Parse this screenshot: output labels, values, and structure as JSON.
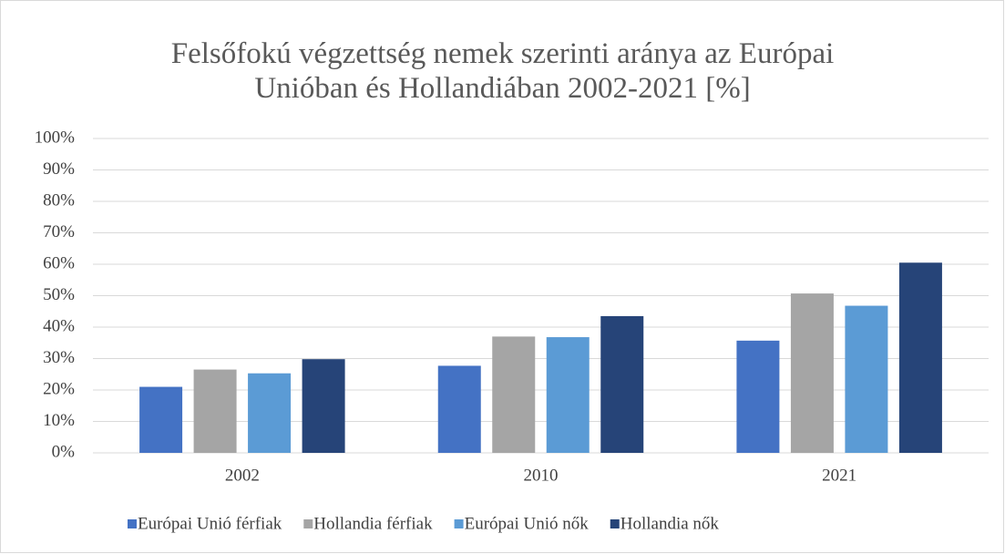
{
  "chart_data": {
    "type": "bar",
    "title": "Felsőfokú végzettség nemek szerinti aránya az Európai Unióban és Hollandiában 2002-2021 [%]",
    "categories": [
      "2002",
      "2010",
      "2021"
    ],
    "series": [
      {
        "name": "Európai Unió férfiak",
        "color": "#4472c4",
        "values": [
          21,
          27.7,
          35.7
        ]
      },
      {
        "name": "Hollandia férfiak",
        "color": "#a5a5a5",
        "values": [
          26.5,
          37,
          50.7
        ]
      },
      {
        "name": "Európai Unió nők",
        "color": "#5b9bd5",
        "values": [
          25.3,
          36.8,
          46.8
        ]
      },
      {
        "name": "Hollandia nők",
        "color": "#264478",
        "values": [
          29.8,
          43.5,
          60.5
        ]
      }
    ],
    "ylim": [
      0,
      100
    ],
    "yticks": [
      {
        "value": 0,
        "label": "0%"
      },
      {
        "value": 10,
        "label": "10%"
      },
      {
        "value": 20,
        "label": "20%"
      },
      {
        "value": 30,
        "label": "30%"
      },
      {
        "value": 40,
        "label": "40%"
      },
      {
        "value": 50,
        "label": "50%"
      },
      {
        "value": 60,
        "label": "60%"
      },
      {
        "value": 70,
        "label": "70%"
      },
      {
        "value": 80,
        "label": "80%"
      },
      {
        "value": 90,
        "label": "90%"
      },
      {
        "value": 100,
        "label": "100%"
      }
    ],
    "grid": true,
    "legend": "bottom"
  }
}
